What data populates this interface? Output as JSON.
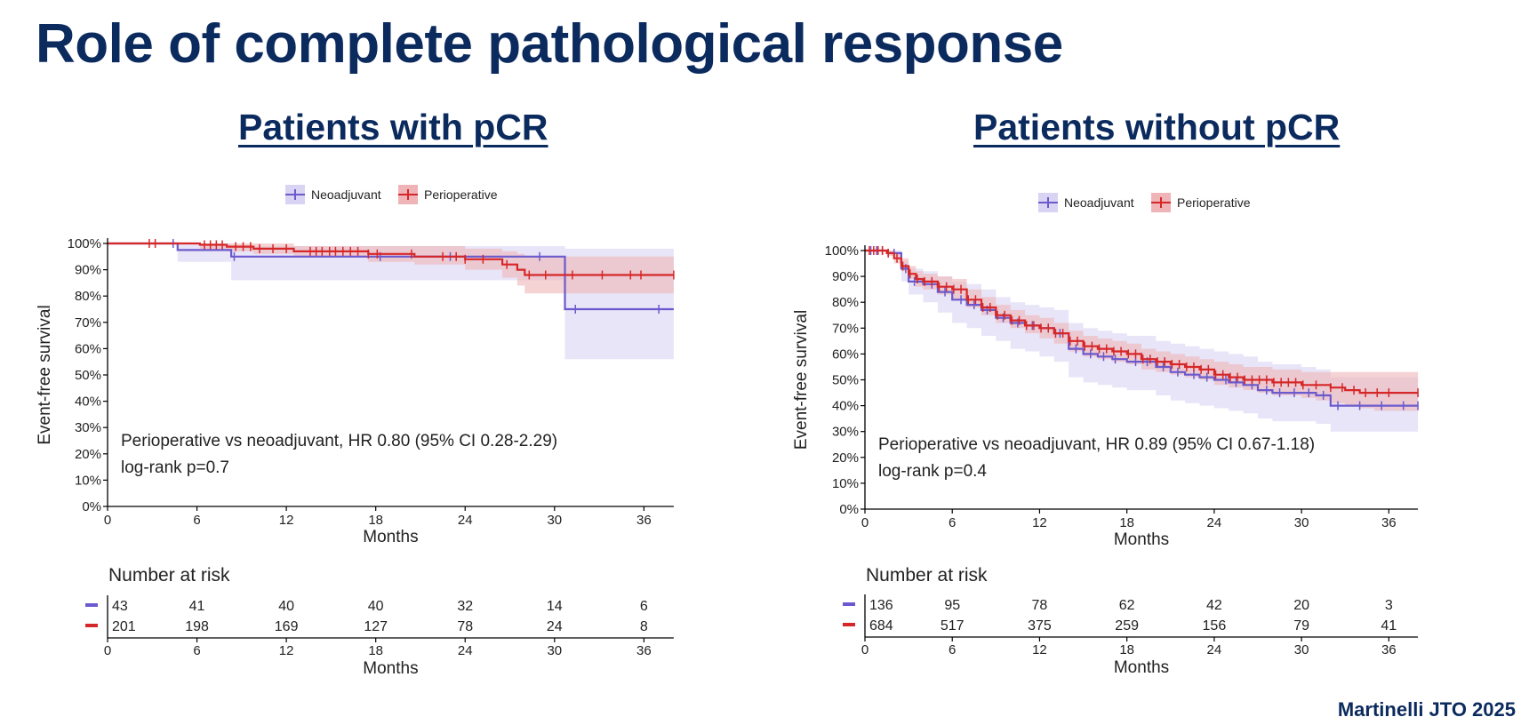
{
  "slide": {
    "title": "Role of complete pathological response",
    "citation": "Martinelli JTO 2025"
  },
  "colors": {
    "title": "#0b2a5e",
    "neoadjuvant": "#6a5acd",
    "neoadjuvant_band": "#d9d4f3",
    "perioperative": "#d62728",
    "perioperative_band": "#eeb4b7"
  },
  "chart_data": [
    {
      "type": "line",
      "chart_subtype": "kaplan-meier",
      "title": "Patients with pCR",
      "xlabel": "Months",
      "ylabel": "Event-free survival",
      "xlim": [
        0,
        38
      ],
      "ylim": [
        0,
        100
      ],
      "xticks": [
        0,
        6,
        12,
        18,
        24,
        30,
        36
      ],
      "yticks": [
        "0%",
        "10%",
        "20%",
        "30%",
        "40%",
        "50%",
        "60%",
        "70%",
        "80%",
        "90%",
        "100%"
      ],
      "legend": {
        "position": "top-center",
        "entries": [
          "Neoadjuvant",
          "Perioperative"
        ]
      },
      "annotation": [
        "Perioperative vs neoadjuvant, HR 0.80 (95% CI 0.28-2.29)",
        "log-rank p=0.7"
      ],
      "series": [
        {
          "name": "Neoadjuvant",
          "color_key": "neoadjuvant",
          "x": [
            0,
            4.7,
            8.3,
            30.7,
            38
          ],
          "y": [
            100,
            97.5,
            95.0,
            75.0,
            75.0
          ],
          "ci_lower": [
            100,
            93,
            86,
            56,
            56
          ],
          "ci_upper": [
            100,
            100,
            99,
            98,
            98
          ],
          "censor_x": [
            4.4,
            8.5,
            18.3,
            23.0,
            29.0,
            31.4,
            37.0
          ]
        },
        {
          "name": "Perioperative",
          "color_key": "perioperative",
          "x": [
            0,
            6.2,
            8.0,
            9.8,
            12.5,
            17.5,
            20.6,
            24.0,
            26.5,
            27.5,
            28.0,
            38
          ],
          "y": [
            100,
            99.5,
            98.8,
            98.0,
            97.0,
            96.0,
            95.0,
            94.0,
            92.0,
            90.0,
            88.0,
            88.0
          ],
          "ci_lower": [
            100,
            98,
            97,
            96,
            95,
            93,
            92,
            90,
            87,
            84,
            81,
            81
          ],
          "ci_upper": [
            100,
            100,
            100,
            100,
            99,
            99,
            99,
            98,
            97,
            96,
            95,
            95
          ],
          "censor_x": [
            2.8,
            3.2,
            6.5,
            6.9,
            7.3,
            7.7,
            8.6,
            9.1,
            9.6,
            10.2,
            11.1,
            12.0,
            13.6,
            14.0,
            14.4,
            14.9,
            15.3,
            15.8,
            16.3,
            16.8,
            17.5,
            18.1,
            20.4,
            22.5,
            23.4,
            24.0,
            25.2,
            26.8,
            28.3,
            29.4,
            31.2,
            33.2,
            35.1,
            35.8,
            38
          ]
        }
      ],
      "risk_table": {
        "title": "Number at risk",
        "times": [
          0,
          6,
          12,
          18,
          24,
          30,
          36
        ],
        "xlabel": "Months",
        "rows": [
          {
            "color_key": "neoadjuvant",
            "values": [
              "43",
              "41",
              "40",
              "40",
              "32",
              "14",
              "6"
            ]
          },
          {
            "color_key": "perioperative",
            "values": [
              "201",
              "198",
              "169",
              "127",
              "78",
              "24",
              "8"
            ]
          }
        ]
      }
    },
    {
      "type": "line",
      "chart_subtype": "kaplan-meier",
      "title": "Patients without pCR",
      "xlabel": "Months",
      "ylabel": "Event-free survival",
      "xlim": [
        0,
        38
      ],
      "ylim": [
        0,
        100
      ],
      "xticks": [
        0,
        6,
        12,
        18,
        24,
        30,
        36
      ],
      "yticks": [
        "0%",
        "10%",
        "20%",
        "30%",
        "40%",
        "50%",
        "60%",
        "70%",
        "80%",
        "90%",
        "100%"
      ],
      "legend": {
        "position": "top-center",
        "entries": [
          "Neoadjuvant",
          "Perioperative"
        ]
      },
      "annotation": [
        "Perioperative vs neoadjuvant, HR 0.89 (95% CI 0.67-1.18)",
        "log-rank p=0.4"
      ],
      "series": [
        {
          "name": "Neoadjuvant",
          "color_key": "neoadjuvant",
          "x": [
            0,
            1.5,
            2.5,
            3.0,
            4.0,
            5.0,
            6.0,
            7.0,
            8.0,
            9.0,
            10.0,
            11.0,
            12.0,
            13.0,
            14.0,
            15.0,
            16.0,
            17.0,
            18.0,
            19.0,
            20.0,
            21.0,
            22.0,
            23.0,
            24.0,
            25.0,
            26.0,
            27.0,
            28.0,
            29.0,
            30.0,
            31.0,
            32.0,
            33.0,
            34.0,
            35.0,
            36.0,
            38.0
          ],
          "y": [
            100,
            99,
            93,
            88,
            87,
            84,
            81,
            79,
            77,
            74,
            72,
            71,
            70,
            68,
            62,
            60,
            59,
            58,
            57,
            57,
            55,
            53,
            52,
            51,
            50,
            49,
            48,
            46,
            45,
            45,
            45,
            44,
            40,
            40,
            40,
            40,
            40,
            40
          ],
          "ci_lower": [
            100,
            98,
            88,
            83,
            80,
            76,
            72,
            70,
            67,
            65,
            62,
            61,
            59,
            57,
            51,
            49,
            48,
            47,
            46,
            46,
            44,
            42,
            41,
            40,
            39,
            38,
            37,
            35,
            34,
            34,
            34,
            33,
            30,
            30,
            30,
            30,
            30,
            30
          ],
          "ci_upper": [
            100,
            100,
            96,
            93,
            92,
            90,
            88,
            87,
            85,
            82,
            80,
            79,
            78,
            77,
            72,
            70,
            69,
            68,
            67,
            67,
            65,
            64,
            63,
            62,
            61,
            60,
            59,
            57,
            56,
            56,
            55,
            54,
            51,
            51,
            51,
            51,
            51,
            51
          ],
          "censor_x": [
            0.4,
            0.8,
            1.2,
            2.0,
            2.8,
            3.4,
            4.6,
            5.5,
            6.6,
            7.5,
            8.4,
            9.5,
            10.5,
            11.5,
            12.6,
            13.4,
            14.5,
            15.5,
            16.4,
            17.2,
            18.6,
            19.4,
            20.5,
            21.5,
            22.6,
            23.5,
            24.8,
            25.5,
            26.6,
            27.6,
            28.5,
            29.5,
            30.5,
            31.5,
            32.5,
            34.0,
            35.5,
            37.0,
            38.0
          ]
        },
        {
          "name": "Perioperative",
          "color_key": "perioperative",
          "x": [
            0,
            1.5,
            2.0,
            2.5,
            3.0,
            3.5,
            4.0,
            5.0,
            6.0,
            7.0,
            8.0,
            9.0,
            10.0,
            11.0,
            12.0,
            13.0,
            14.0,
            15.0,
            16.0,
            17.0,
            18.0,
            19.0,
            20.0,
            21.0,
            22.0,
            23.0,
            24.0,
            25.0,
            26.0,
            27.0,
            28.0,
            29.0,
            30.0,
            31.0,
            32.0,
            33.0,
            34.0,
            35.0,
            36.0,
            38.0
          ],
          "y": [
            100,
            99,
            97,
            94,
            91,
            89,
            88,
            86,
            85,
            81,
            78,
            75,
            73,
            71,
            70,
            68,
            65,
            63,
            62,
            61,
            60,
            58,
            57,
            56,
            55,
            54,
            52,
            51,
            50,
            50,
            49,
            49,
            48,
            48,
            47,
            46,
            45,
            45,
            45,
            45
          ],
          "ci_lower": [
            100,
            98,
            95,
            92,
            89,
            86,
            85,
            83,
            81,
            78,
            75,
            72,
            70,
            68,
            66,
            64,
            61,
            59,
            58,
            57,
            56,
            54,
            53,
            52,
            51,
            50,
            48,
            47,
            46,
            45,
            44,
            44,
            43,
            42,
            41,
            40,
            39,
            38,
            38,
            38
          ],
          "ci_upper": [
            100,
            100,
            99,
            97,
            94,
            92,
            91,
            90,
            89,
            85,
            82,
            79,
            77,
            75,
            74,
            72,
            69,
            67,
            66,
            65,
            64,
            62,
            61,
            60,
            59,
            58,
            57,
            56,
            55,
            55,
            54,
            54,
            53,
            53,
            53,
            53,
            53,
            53,
            53,
            53
          ],
          "censor_x": [
            0.3,
            0.6,
            0.9,
            1.2,
            1.6,
            2.2,
            2.6,
            3.1,
            3.6,
            4.1,
            4.6,
            5.1,
            5.6,
            6.1,
            6.6,
            7.1,
            7.6,
            8.1,
            8.6,
            9.1,
            9.6,
            10.1,
            10.6,
            11.1,
            11.6,
            12.1,
            12.6,
            13.1,
            13.6,
            14.1,
            14.6,
            15.1,
            15.6,
            16.1,
            16.6,
            17.1,
            17.6,
            18.1,
            18.6,
            19.1,
            19.6,
            20.1,
            20.6,
            21.1,
            21.6,
            22.1,
            22.6,
            23.1,
            23.6,
            24.1,
            24.6,
            25.1,
            25.6,
            26.1,
            26.6,
            27.1,
            27.6,
            28.1,
            28.6,
            29.1,
            29.6,
            30.1,
            31.0,
            32.0,
            32.8,
            33.6,
            34.4,
            35.2,
            36.0,
            38.0
          ]
        }
      ],
      "risk_table": {
        "title": "Number at risk",
        "times": [
          0,
          6,
          12,
          18,
          24,
          30,
          36
        ],
        "xlabel": "Months",
        "rows": [
          {
            "color_key": "neoadjuvant",
            "values": [
              "136",
              "95",
              "78",
              "62",
              "42",
              "20",
              "3"
            ]
          },
          {
            "color_key": "perioperative",
            "values": [
              "684",
              "517",
              "375",
              "259",
              "156",
              "79",
              "41"
            ]
          }
        ]
      }
    }
  ]
}
